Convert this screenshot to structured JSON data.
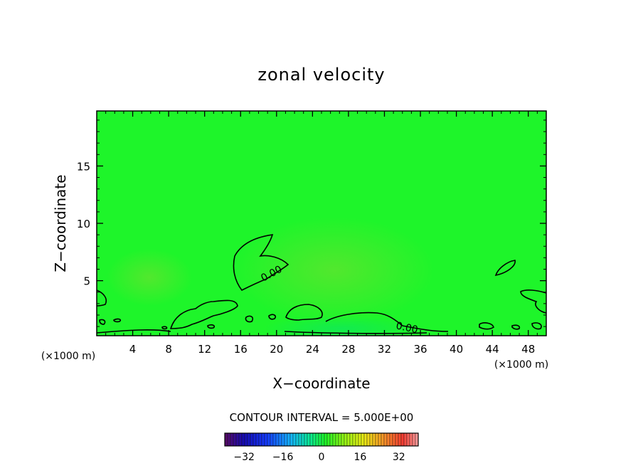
{
  "chart_data": {
    "type": "contour",
    "title": "zonal velocity",
    "xlabel": "X−coordinate",
    "ylabel": "Z−coordinate",
    "x_unit_left": "(×1000 m)",
    "x_unit_right": "(×1000 m)",
    "xlim": [
      0,
      50
    ],
    "ylim": [
      0.2,
      19.8
    ],
    "x_ticks": [
      4,
      8,
      12,
      16,
      20,
      24,
      28,
      32,
      36,
      40,
      44,
      48
    ],
    "y_ticks": [
      5,
      10,
      15
    ],
    "contour_labels": [
      "0.00",
      "0.00"
    ],
    "contour_interval": "CONTOUR INTERVAL =  5.000E+00",
    "colorbar": {
      "range": [
        -40,
        40
      ],
      "ticks": [
        -32,
        -16,
        0,
        16,
        32
      ],
      "tick_labels": [
        "−32",
        "−16",
        "0",
        "16",
        "32"
      ]
    },
    "colors": {
      "background_field": "#1ef52a",
      "contour_line": "#000000"
    }
  }
}
